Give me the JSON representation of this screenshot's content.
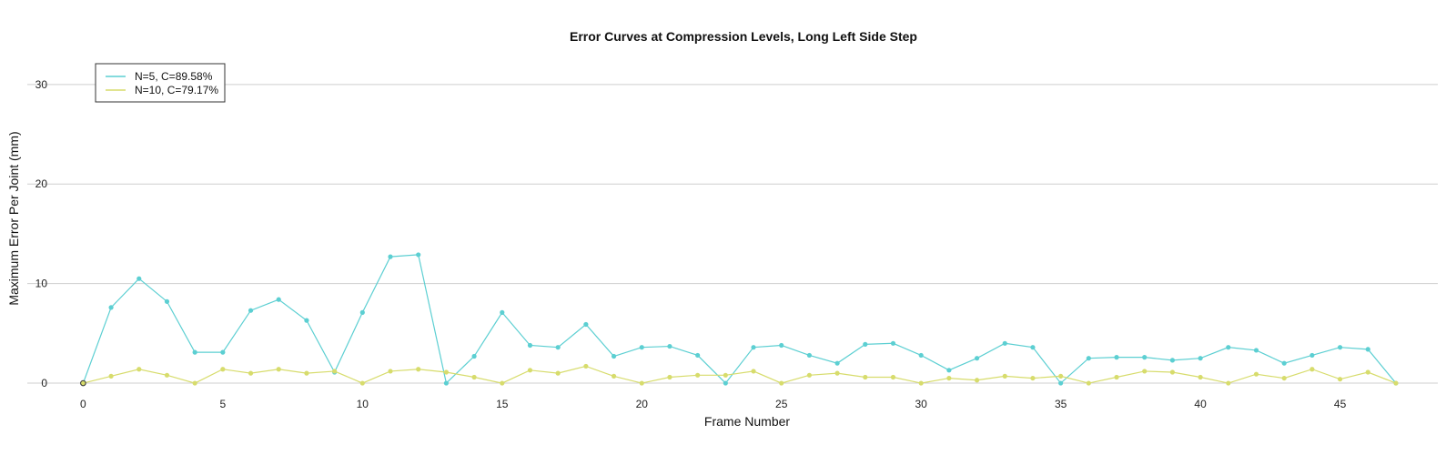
{
  "chart_data": {
    "type": "line",
    "title": "Error Curves at Compression Levels, Long Left Side Step",
    "xlabel": "Frame Number",
    "ylabel": "Maximum Error Per Joint (mm)",
    "xlim": [
      -2,
      48.5
    ],
    "ylim": [
      -1,
      33
    ],
    "xticks": [
      0,
      5,
      10,
      15,
      20,
      25,
      30,
      35,
      40,
      45
    ],
    "yticks": [
      0,
      10,
      20,
      30
    ],
    "grid": "horizontal",
    "legend_position": "top-left",
    "x": [
      0,
      1,
      2,
      3,
      4,
      5,
      6,
      7,
      8,
      9,
      10,
      11,
      12,
      13,
      14,
      15,
      16,
      17,
      18,
      19,
      20,
      21,
      22,
      23,
      24,
      25,
      26,
      27,
      28,
      29,
      30,
      31,
      32,
      33,
      34,
      35,
      36,
      37,
      38,
      39,
      40,
      41,
      42,
      43,
      44,
      45,
      46,
      47
    ],
    "series": [
      {
        "name": "N=5, C=89.58%",
        "color": "#5ccfd2",
        "values": [
          0.0,
          7.6,
          10.5,
          8.2,
          3.1,
          3.1,
          7.3,
          8.4,
          6.3,
          1.1,
          7.1,
          12.7,
          12.9,
          0.0,
          2.7,
          7.1,
          3.8,
          3.6,
          5.9,
          2.7,
          3.6,
          3.7,
          2.8,
          0.0,
          3.6,
          3.8,
          2.8,
          2.0,
          3.9,
          4.0,
          2.8,
          1.3,
          2.5,
          4.0,
          3.6,
          0.0,
          2.5,
          2.6,
          2.6,
          2.3,
          2.5,
          3.6,
          3.3,
          2.0,
          2.8,
          3.6,
          3.4,
          0.0
        ]
      },
      {
        "name": "N=10, C=79.17%",
        "color": "#d7dc6c",
        "values": [
          0.0,
          0.7,
          1.4,
          0.8,
          0.0,
          1.4,
          1.0,
          1.4,
          1.0,
          1.2,
          0.0,
          1.2,
          1.4,
          1.1,
          0.6,
          0.0,
          1.3,
          1.0,
          1.7,
          0.7,
          0.0,
          0.6,
          0.8,
          0.8,
          1.2,
          0.0,
          0.8,
          1.0,
          0.6,
          0.6,
          0.0,
          0.5,
          0.3,
          0.7,
          0.5,
          0.7,
          0.0,
          0.6,
          1.2,
          1.1,
          0.6,
          0.0,
          0.9,
          0.5,
          1.4,
          0.4,
          1.1,
          0.0
        ]
      }
    ]
  }
}
